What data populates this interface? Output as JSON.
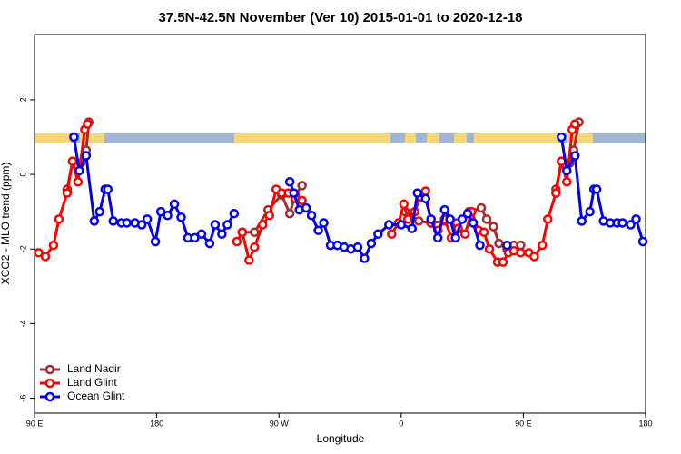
{
  "chart_data": {
    "type": "line",
    "title": "37.5N-42.5N November (Ver 10)   2015-01-01 to 2020-12-18",
    "xlabel": "Longitude",
    "ylabel": "XCO2 - MLO trend (ppm)",
    "xlim": [
      90,
      540
    ],
    "ylim": [
      -6.4,
      3.75
    ],
    "xticks": [
      {
        "value": 90,
        "label": "90 E"
      },
      180,
      {
        "value": 270,
        "label": "90 W"
      },
      {
        "value": 360,
        "label": "0"
      },
      {
        "value": 450,
        "label": "90 E"
      },
      {
        "value": 540,
        "label": "180"
      }
    ],
    "yticks": [
      -6,
      -4,
      -2,
      0,
      2
    ],
    "legend": "bottom-left",
    "series": [
      {
        "name": "Land Nadir",
        "color": "#a52a2a",
        "x": [
          114,
          118,
          124,
          128,
          130,
          200,
          243,
          252,
          262,
          272,
          278,
          282,
          287,
          320,
          363,
          373,
          382,
          392,
          401,
          410,
          419,
          423,
          428,
          432,
          438,
          443,
          448,
          460,
          474,
          478,
          484,
          487,
          491
        ],
        "values": [
          -0.4,
          0.35,
          0.3,
          0.65,
          1.4,
          null,
          -1.55,
          -1.55,
          -0.95,
          -0.55,
          -1.05,
          -0.55,
          -0.3,
          null,
          -1.0,
          -1.25,
          -1.3,
          -1.25,
          -1.3,
          -1.0,
          -0.9,
          -1.2,
          -1.4,
          -1.85,
          -2.0,
          -1.9,
          -1.9,
          null,
          -0.4,
          0.35,
          0.3,
          0.65,
          1.4
        ]
      },
      {
        "name": "Land Glint",
        "color": "#ff0000",
        "x": [
          93,
          98,
          104,
          108,
          114,
          118,
          122,
          127,
          129,
          200,
          239,
          243,
          248,
          252,
          258,
          263,
          268,
          272,
          277,
          282,
          287,
          320,
          353,
          358,
          362,
          365,
          370,
          374,
          378,
          382,
          387,
          392,
          397,
          402,
          407,
          412,
          417,
          421,
          425,
          431,
          435,
          439,
          443,
          448,
          454,
          458,
          464,
          468,
          474,
          478,
          482,
          486,
          488
        ],
        "values": [
          -2.1,
          -2.2,
          -1.9,
          -1.2,
          -0.5,
          0.35,
          -0.2,
          1.2,
          1.35,
          null,
          -1.8,
          -1.55,
          -2.3,
          -1.95,
          -1.35,
          -1.1,
          -0.4,
          -0.5,
          -0.5,
          -0.65,
          -0.7,
          null,
          -1.6,
          -1.3,
          -0.8,
          -1.2,
          -1.0,
          -0.6,
          -0.45,
          -1.3,
          -1.5,
          -1.2,
          -1.7,
          -1.45,
          -1.6,
          -1.0,
          -1.5,
          -1.55,
          -2.0,
          -2.35,
          -2.35,
          -2.1,
          -2.05,
          -2.1,
          -2.1,
          -2.2,
          -1.9,
          -1.2,
          -0.5,
          0.35,
          -0.2,
          1.2,
          1.35
        ]
      },
      {
        "name": "Ocean Glint",
        "color": "#0000ee",
        "x": [
          119,
          123,
          128,
          134,
          138,
          142,
          144,
          148,
          154,
          158,
          164,
          169,
          173,
          179,
          183,
          188,
          193,
          198,
          203,
          208,
          213,
          219,
          223,
          228,
          232,
          237,
          260,
          278,
          281,
          285,
          290,
          294,
          299,
          303,
          308,
          313,
          318,
          323,
          328,
          333,
          338,
          343,
          351,
          360,
          368,
          372,
          378,
          382,
          387,
          392,
          396,
          400,
          405,
          409,
          413,
          418,
          428,
          438,
          460,
          478,
          482,
          488,
          493,
          499,
          502,
          504,
          509,
          514,
          519,
          523,
          529,
          533,
          538
        ],
        "values": [
          1.0,
          0.1,
          0.5,
          -1.25,
          -1.0,
          -0.4,
          -0.4,
          -1.25,
          -1.3,
          -1.3,
          -1.3,
          -1.35,
          -1.2,
          -1.8,
          -1.0,
          -1.1,
          -0.8,
          -1.15,
          -1.7,
          -1.7,
          -1.6,
          -1.85,
          -1.35,
          -1.6,
          -1.35,
          -1.05,
          null,
          -0.2,
          -0.5,
          -0.95,
          -0.9,
          -1.1,
          -1.5,
          -1.3,
          -1.9,
          -1.9,
          -1.95,
          -2.0,
          -1.95,
          -2.25,
          -1.85,
          -1.6,
          -1.35,
          -1.35,
          -1.45,
          -0.5,
          -0.65,
          -1.2,
          -1.7,
          -0.95,
          -1.2,
          -1.7,
          -1.2,
          -1.05,
          -1.3,
          -1.9,
          null,
          -1.9,
          null,
          1.0,
          0.1,
          0.5,
          -1.25,
          -1.0,
          -0.4,
          -0.4,
          -1.25,
          -1.3,
          -1.3,
          -1.3,
          -1.35,
          -1.2,
          -1.8
        ]
      }
    ]
  }
}
